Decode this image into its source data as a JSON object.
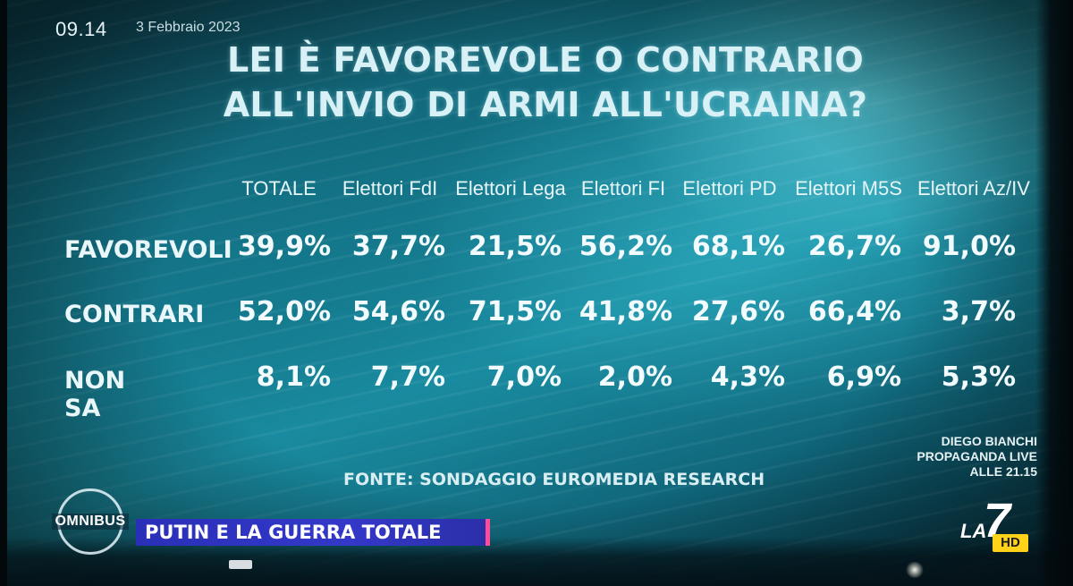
{
  "clock": "09.14",
  "date": "3 Febbraio 2023",
  "title": {
    "line1": "LEI È FAVOREVOLE O CONTRARIO",
    "line2": "ALL'INVIO DI ARMI ALL'UCRAINA?"
  },
  "table": {
    "columns": [
      "TOTALE",
      "Elettori FdI",
      "Elettori Lega",
      "Elettori FI",
      "Elettori PD",
      "Elettori M5S",
      "Elettori Az/IV"
    ],
    "rows": [
      {
        "label": "FAVOREVOLI",
        "values": [
          "39,9%",
          "37,7%",
          "21,5%",
          "56,2%",
          "68,1%",
          "26,7%",
          "91,0%"
        ]
      },
      {
        "label": "CONTRARI",
        "values": [
          "52,0%",
          "54,6%",
          "71,5%",
          "41,8%",
          "27,6%",
          "66,4%",
          "3,7%"
        ]
      },
      {
        "label": "NON SA",
        "values": [
          "8,1%",
          "7,7%",
          "7,0%",
          "2,0%",
          "4,3%",
          "6,9%",
          "5,3%"
        ]
      }
    ]
  },
  "source": "FONTE: SONDAGGIO EUROMEDIA RESEARCH",
  "promo": {
    "line1": "DIEGO BIANCHI",
    "line2": "PROPAGANDA LIVE",
    "line3": "ALLE 21.15"
  },
  "show_logo": "OMNIBUS",
  "headline": "PUTIN E LA GUERRA TOTALE",
  "channel": {
    "la": "LA",
    "seven": "7",
    "hd": "HD"
  },
  "colors": {
    "headline_bar": "#3438c9",
    "hd_badge": "#ffd21a",
    "accent": "#ff4b9a"
  }
}
